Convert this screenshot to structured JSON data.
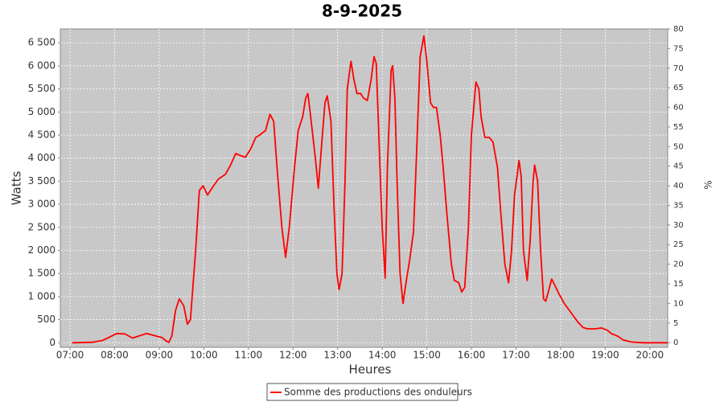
{
  "chart_data": {
    "type": "line",
    "title": "8-9-2025",
    "x_label": "Heures",
    "y_label": "Watts",
    "y2_label": "%",
    "x": [
      "07:03",
      "07:30",
      "07:44",
      "08:03",
      "08:14",
      "08:24",
      "08:43",
      "08:57",
      "09:04",
      "09:10",
      "09:13",
      "09:17",
      "09:22",
      "09:27",
      "09:33",
      "09:38",
      "09:42",
      "09:49",
      "09:54",
      "09:59",
      "10:05",
      "10:13",
      "10:20",
      "10:29",
      "10:36",
      "10:43",
      "10:50",
      "10:56",
      "11:03",
      "11:10",
      "11:15",
      "11:23",
      "11:29",
      "11:34",
      "11:39",
      "11:45",
      "11:50",
      "11:55",
      "12:02",
      "12:07",
      "12:13",
      "12:17",
      "12:20",
      "12:23",
      "12:30",
      "12:34",
      "12:39",
      "12:43",
      "12:46",
      "12:51",
      "12:55",
      "12:59",
      "13:02",
      "13:06",
      "13:10",
      "13:13",
      "13:18",
      "13:22",
      "13:26",
      "13:31",
      "13:35",
      "13:40",
      "13:45",
      "13:49",
      "13:52",
      "13:55",
      "14:00",
      "14:04",
      "14:07",
      "14:12",
      "14:14",
      "14:17",
      "14:20",
      "14:24",
      "14:28",
      "14:32",
      "14:37",
      "14:42",
      "14:46",
      "14:51",
      "14:56",
      "15:00",
      "15:05",
      "15:09",
      "15:13",
      "15:18",
      "15:22",
      "15:27",
      "15:33",
      "15:37",
      "15:43",
      "15:47",
      "15:51",
      "15:56",
      "16:00",
      "16:06",
      "16:10",
      "16:13",
      "16:18",
      "16:24",
      "16:29",
      "16:35",
      "16:40",
      "16:45",
      "16:50",
      "16:54",
      "16:58",
      "17:04",
      "17:07",
      "17:10",
      "17:15",
      "17:19",
      "17:23",
      "17:25",
      "17:29",
      "17:33",
      "17:37",
      "17:40",
      "17:45",
      "17:48",
      "17:52",
      "17:58",
      "18:05",
      "18:14",
      "18:23",
      "18:30",
      "18:36",
      "18:46",
      "18:55",
      "19:03",
      "19:08",
      "19:17",
      "19:24",
      "19:35",
      "19:51",
      "20:24"
    ],
    "series": [
      {
        "name": "Somme des productions des onduleurs",
        "color": "#ff0000",
        "values": [
          0,
          10,
          50,
          200,
          190,
          100,
          200,
          140,
          110,
          30,
          5,
          150,
          700,
          950,
          800,
          400,
          500,
          2000,
          3300,
          3400,
          3200,
          3400,
          3550,
          3650,
          3850,
          4100,
          4050,
          4020,
          4200,
          4450,
          4500,
          4600,
          4950,
          4800,
          3700,
          2500,
          1850,
          2500,
          3800,
          4600,
          4900,
          5300,
          5400,
          5000,
          4000,
          3350,
          4400,
          5200,
          5350,
          4800,
          3000,
          1500,
          1150,
          1500,
          3500,
          5500,
          6100,
          5700,
          5400,
          5400,
          5300,
          5250,
          5700,
          6200,
          6050,
          4700,
          2500,
          1400,
          3800,
          5900,
          6000,
          5300,
          3500,
          1500,
          850,
          1300,
          1800,
          2400,
          4000,
          6200,
          6650,
          6100,
          5200,
          5100,
          5100,
          4500,
          3800,
          2800,
          1700,
          1350,
          1300,
          1100,
          1200,
          2500,
          4500,
          5650,
          5500,
          4900,
          4450,
          4450,
          4350,
          3800,
          2700,
          1700,
          1300,
          2000,
          3200,
          3950,
          3600,
          2000,
          1350,
          2200,
          3500,
          3850,
          3500,
          2000,
          950,
          900,
          1200,
          1380,
          1250,
          1050,
          850,
          650,
          450,
          330,
          300,
          300,
          320,
          270,
          200,
          140,
          60,
          15,
          0,
          0
        ]
      }
    ],
    "xlim": [
      "06:47",
      "20:24"
    ],
    "xticks": [
      "07:00",
      "08:00",
      "09:00",
      "10:00",
      "11:00",
      "12:00",
      "13:00",
      "14:00",
      "15:00",
      "16:00",
      "17:00",
      "18:00",
      "19:00",
      "20:00"
    ],
    "ylim": [
      -100,
      6800
    ],
    "yticks": [
      0,
      500,
      {
        "value": 1000,
        "label": "1 000"
      },
      {
        "value": 1500,
        "label": "1 500"
      },
      {
        "value": 2000,
        "label": "2 000"
      },
      {
        "value": 2500,
        "label": "2 500"
      },
      {
        "value": 3000,
        "label": "3 000"
      },
      {
        "value": 3500,
        "label": "3 500"
      },
      {
        "value": 4000,
        "label": "4 000"
      },
      {
        "value": 4500,
        "label": "4 500"
      },
      {
        "value": 5000,
        "label": "5 000"
      },
      {
        "value": 5500,
        "label": "5 500"
      },
      {
        "value": 6000,
        "label": "6 000"
      },
      {
        "value": 6500,
        "label": "6 500"
      }
    ],
    "y2lim": [
      -1.2,
      80
    ],
    "y2ticks": [
      0,
      5,
      10,
      15,
      20,
      25,
      30,
      35,
      40,
      45,
      50,
      55,
      60,
      65,
      70,
      75,
      80
    ],
    "grid": true,
    "legend": "bottom"
  }
}
